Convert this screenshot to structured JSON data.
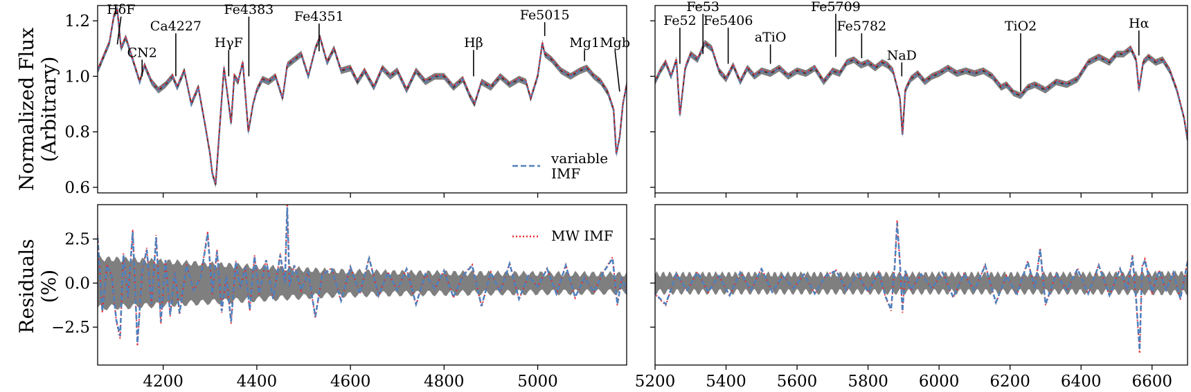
{
  "chart_data": {
    "type": "line",
    "layout": "2x2 panel grid, shared x per column, shared y per row",
    "colors": {
      "variable_imf": "#4f81bd",
      "mw_imf": "#e8252c",
      "data_band": "#7f7f7f",
      "data_line": "#333333"
    },
    "panels": {
      "flux_blue": {
        "ylabel": [
          "Normalized Flux",
          "(Arbitrary)"
        ],
        "xlim": [
          4060,
          5190
        ],
        "ylim": [
          0.58,
          1.255
        ],
        "yticks": [
          0.6,
          0.8,
          1.0,
          1.2
        ],
        "ytick_labels": [
          "0.6",
          "0.8",
          "1.0",
          "1.2"
        ],
        "xticks": [
          4200,
          4400,
          4600,
          4800,
          5000
        ],
        "legend": {
          "placement": "lower right",
          "entries": [
            {
              "label": "variable IMF",
              "style": "dashed",
              "color": "#4f81bd"
            },
            {
              "label": "MW IMF",
              "style": "dotted",
              "color": "#e8252c"
            }
          ]
        },
        "annotations": [
          {
            "label": "HδF",
            "x": 4102,
            "tip_y": 1.115,
            "text_y": 1.225,
            "line_from_x": 4110
          },
          {
            "label": "CN2",
            "x": 4155,
            "tip_y": 1.0,
            "text_y": 1.07
          },
          {
            "label": "Ca4227",
            "x": 4227,
            "tip_y": 1.0,
            "text_y": 1.165
          },
          {
            "label": "HγF",
            "x": 4340,
            "tip_y": 1.0,
            "text_y": 1.105
          },
          {
            "label": "Fe4383",
            "x": 4383,
            "tip_y": 1.0,
            "text_y": 1.225
          },
          {
            "label": "Fe4351",
            "x": 4533,
            "tip_y": 1.09,
            "text_y": 1.2
          },
          {
            "label": "Hβ",
            "x": 4863,
            "tip_y": 1.0,
            "text_y": 1.105
          },
          {
            "label": "Fe5015",
            "x": 5015,
            "tip_y": 1.145,
            "text_y": 1.205
          },
          {
            "label": "Mg1",
            "x": 5100,
            "tip_y": 1.055,
            "text_y": 1.105
          },
          {
            "label": "Mgb",
            "x": 5175,
            "tip_y": 0.945,
            "text_y": 1.105,
            "line_from_x": 5165
          }
        ]
      },
      "flux_red": {
        "xlim": [
          5200,
          6700
        ],
        "ylim": [
          0.58,
          1.255
        ],
        "yticks": [
          0.6,
          0.8,
          1.0,
          1.2
        ],
        "xticks": [
          5200,
          5400,
          5600,
          5800,
          6000,
          6200,
          6400,
          6600
        ],
        "annotations": [
          {
            "label": "Fe52",
            "x": 5270,
            "tip_y": 1.045,
            "text_y": 1.185
          },
          {
            "label": "Fe53",
            "x": 5335,
            "tip_y": 1.08,
            "text_y": 1.235
          },
          {
            "label": "Fe5406",
            "x": 5406,
            "tip_y": 1.045,
            "text_y": 1.185
          },
          {
            "label": "aTiO",
            "x": 5525,
            "tip_y": 1.045,
            "text_y": 1.125
          },
          {
            "label": "Fe5709",
            "x": 5709,
            "tip_y": 1.07,
            "text_y": 1.235
          },
          {
            "label": "Fe5782",
            "x": 5782,
            "tip_y": 1.065,
            "text_y": 1.165
          },
          {
            "label": "NaD",
            "x": 5895,
            "tip_y": 1.0,
            "text_y": 1.06
          },
          {
            "label": "TiO2",
            "x": 6230,
            "tip_y": 0.945,
            "text_y": 1.165
          },
          {
            "label": "Hα",
            "x": 6563,
            "tip_y": 1.075,
            "text_y": 1.175
          }
        ]
      },
      "resid_blue": {
        "ylabel": [
          "Residuals",
          "(%)"
        ],
        "xlim": [
          4060,
          5190
        ],
        "ylim": [
          -4.65,
          4.45
        ],
        "yticks": [
          -2.5,
          0.0,
          2.5
        ],
        "ytick_labels": [
          "−2.5",
          "0.0",
          "2.5"
        ],
        "xticks": [
          4200,
          4400,
          4600,
          4800,
          5000
        ],
        "xtick_labels": [
          "4200",
          "4400",
          "4600",
          "4800",
          "5000"
        ]
      },
      "resid_red": {
        "xlim": [
          5200,
          6700
        ],
        "ylim": [
          -4.65,
          4.45
        ],
        "yticks": [
          -2.5,
          0.0,
          2.5
        ],
        "xticks": [
          5200,
          5400,
          5600,
          5800,
          6000,
          6200,
          6400,
          6600
        ],
        "xtick_labels": [
          "5200",
          "5400",
          "5600",
          "5800",
          "6000",
          "6200",
          "6400",
          "6600"
        ]
      }
    },
    "flux_series": {
      "x": [
        4060,
        4075,
        4085,
        4095,
        4102,
        4110,
        4120,
        4135,
        4150,
        4160,
        4175,
        4190,
        4205,
        4220,
        4230,
        4245,
        4260,
        4275,
        4290,
        4300,
        4305,
        4312,
        4320,
        4330,
        4340,
        4345,
        4352,
        4360,
        4370,
        4382,
        4392,
        4400,
        4412,
        4425,
        4440,
        4455,
        4465,
        4480,
        4495,
        4510,
        4525,
        4535,
        4550,
        4565,
        4580,
        4600,
        4615,
        4630,
        4650,
        4668,
        4685,
        4700,
        4720,
        4740,
        4760,
        4780,
        4800,
        4820,
        4840,
        4855,
        4865,
        4880,
        4900,
        4920,
        4940,
        4960,
        4975,
        4985,
        5000,
        5010,
        5015,
        5030,
        5050,
        5070,
        5090,
        5105,
        5120,
        5135,
        5150,
        5162,
        5168,
        5175,
        5182,
        5190,
        5200,
        5215,
        5230,
        5245,
        5260,
        5270,
        5285,
        5300,
        5320,
        5340,
        5360,
        5380,
        5400,
        5420,
        5440,
        5460,
        5480,
        5500,
        5525,
        5550,
        5575,
        5600,
        5625,
        5650,
        5675,
        5700,
        5720,
        5740,
        5760,
        5780,
        5800,
        5820,
        5840,
        5855,
        5870,
        5880,
        5890,
        5897,
        5905,
        5920,
        5940,
        5960,
        5980,
        6000,
        6025,
        6050,
        6075,
        6100,
        6125,
        6150,
        6175,
        6190,
        6210,
        6230,
        6250,
        6270,
        6300,
        6330,
        6360,
        6390,
        6420,
        6450,
        6480,
        6500,
        6520,
        6540,
        6555,
        6563,
        6575,
        6590,
        6610,
        6630,
        6650,
        6670,
        6690,
        6700
      ],
      "y": [
        1.02,
        1.08,
        1.12,
        1.22,
        1.24,
        1.1,
        1.14,
        1.06,
        0.98,
        1.04,
        0.98,
        0.95,
        0.97,
        1.0,
        0.96,
        1.02,
        0.9,
        0.96,
        0.82,
        0.72,
        0.65,
        0.61,
        0.8,
        1.03,
        0.9,
        0.83,
        1.0,
        0.98,
        1.05,
        0.8,
        0.9,
        0.95,
        0.99,
        0.98,
        1.0,
        0.92,
        1.04,
        1.06,
        1.08,
        1.0,
        1.1,
        1.14,
        1.05,
        1.1,
        1.02,
        1.03,
        0.98,
        1.02,
        0.96,
        1.03,
        1.0,
        1.02,
        0.95,
        1.02,
        0.98,
        1.0,
        1.0,
        0.96,
        0.99,
        0.93,
        0.9,
        0.98,
        0.96,
        1.0,
        0.97,
        0.99,
        0.98,
        0.92,
        1.0,
        1.12,
        1.08,
        1.06,
        1.02,
        1.0,
        1.02,
        1.03,
        1.0,
        0.98,
        0.94,
        0.88,
        0.72,
        0.78,
        0.9,
        0.97,
        0.98,
        1.02,
        1.05,
        1.0,
        1.06,
        0.86,
        1.03,
        1.08,
        1.06,
        1.12,
        1.1,
        1.02,
        0.99,
        1.04,
        0.98,
        1.03,
        1.0,
        1.02,
        1.01,
        1.03,
        1.0,
        1.02,
        1.01,
        1.03,
        0.98,
        1.02,
        1.01,
        1.05,
        1.06,
        1.04,
        1.05,
        1.03,
        1.05,
        1.04,
        1.02,
        0.97,
        0.92,
        0.79,
        0.95,
        0.99,
        1.01,
        0.98,
        1.0,
        1.01,
        1.03,
        1.01,
        1.02,
        1.01,
        1.02,
        1.0,
        0.96,
        0.97,
        0.94,
        0.93,
        0.96,
        0.97,
        0.95,
        0.98,
        0.97,
        0.99,
        1.05,
        1.07,
        1.05,
        1.08,
        1.08,
        1.1,
        1.06,
        0.95,
        1.05,
        1.07,
        1.05,
        1.06,
        1.02,
        0.95,
        0.85,
        0.77
      ]
    },
    "residual_series": {
      "x": [
        4060,
        4070,
        4080,
        4090,
        4100,
        4108,
        4115,
        4125,
        4135,
        4145,
        4155,
        4165,
        4175,
        4185,
        4195,
        4205,
        4215,
        4225,
        4235,
        4250,
        4265,
        4280,
        4295,
        4305,
        4315,
        4325,
        4335,
        4345,
        4355,
        4365,
        4375,
        4385,
        4395,
        4405,
        4420,
        4435,
        4450,
        4460,
        4465,
        4470,
        4480,
        4495,
        4510,
        4525,
        4540,
        4560,
        4580,
        4600,
        4620,
        4640,
        4660,
        4680,
        4700,
        4720,
        4740,
        4760,
        4780,
        4800,
        4820,
        4840,
        4860,
        4880,
        4900,
        4920,
        4940,
        4960,
        4980,
        5000,
        5020,
        5040,
        5060,
        5080,
        5100,
        5120,
        5140,
        5160,
        5170,
        5180,
        5190,
        5200,
        5230,
        5260,
        5290,
        5320,
        5350,
        5380,
        5410,
        5440,
        5470,
        5500,
        5530,
        5560,
        5590,
        5620,
        5650,
        5680,
        5710,
        5740,
        5770,
        5800,
        5830,
        5850,
        5865,
        5875,
        5882,
        5890,
        5897,
        5905,
        5920,
        5950,
        5980,
        6010,
        6040,
        6070,
        6100,
        6130,
        6160,
        6190,
        6220,
        6250,
        6270,
        6285,
        6300,
        6330,
        6360,
        6390,
        6420,
        6450,
        6480,
        6510,
        6530,
        6545,
        6555,
        6565,
        6572,
        6580,
        6600,
        6620,
        6640,
        6660,
        6680,
        6700
      ],
      "y": [
        2.6,
        -1.6,
        1.0,
        0.4,
        -2.1,
        -3.0,
        1.6,
        -0.8,
        2.9,
        -3.4,
        0.6,
        1.9,
        -1.2,
        2.6,
        -2.2,
        1.3,
        -1.8,
        0.6,
        -1.7,
        1.0,
        -0.4,
        0.3,
        2.8,
        -0.6,
        1.8,
        -1.6,
        0.4,
        -2.2,
        1.2,
        -0.3,
        0.9,
        -1.5,
        1.5,
        -0.6,
        1.3,
        -0.9,
        1.6,
        0.0,
        4.3,
        -0.2,
        1.0,
        -0.4,
        0.6,
        -1.9,
        0.5,
        0.8,
        -1.0,
        0.9,
        -0.6,
        1.4,
        -0.7,
        0.6,
        -0.4,
        0.8,
        -1.2,
        0.5,
        -0.3,
        0.7,
        -0.8,
        0.4,
        1.0,
        -1.3,
        0.6,
        -0.5,
        1.1,
        -0.9,
        0.4,
        -0.2,
        0.8,
        -0.6,
        1.0,
        -0.8,
        0.3,
        -0.5,
        0.6,
        1.4,
        -1.2,
        0.3,
        -0.5,
        -0.6,
        -1.2,
        0.5,
        -0.4,
        0.6,
        -0.5,
        0.4,
        -0.7,
        0.6,
        -0.4,
        0.8,
        -0.5,
        0.4,
        -0.3,
        0.5,
        -0.6,
        0.4,
        0.7,
        -0.4,
        0.5,
        -0.5,
        0.6,
        -0.8,
        -1.5,
        0.9,
        3.4,
        1.1,
        -1.6,
        0.7,
        -0.4,
        0.5,
        -0.3,
        0.6,
        -0.8,
        0.5,
        -0.4,
        1.0,
        -1.1,
        0.4,
        -0.6,
        1.2,
        -0.3,
        1.9,
        -1.2,
        0.5,
        -0.4,
        0.8,
        -0.6,
        1.0,
        -0.7,
        0.8,
        -0.4,
        1.5,
        -0.9,
        -3.8,
        0.9,
        1.3,
        -0.5,
        0.7,
        -0.4,
        0.6,
        -0.9,
        1.2
      ]
    },
    "residual_band_halfwidth": {
      "x": [
        4060,
        4150,
        4250,
        4350,
        4450,
        4550,
        4700,
        4900,
        5190,
        5200,
        5600,
        6000,
        6400,
        6700
      ],
      "y": [
        1.4,
        1.3,
        1.15,
        1.0,
        0.85,
        0.7,
        0.6,
        0.55,
        0.5,
        0.5,
        0.5,
        0.5,
        0.5,
        0.55
      ]
    }
  }
}
